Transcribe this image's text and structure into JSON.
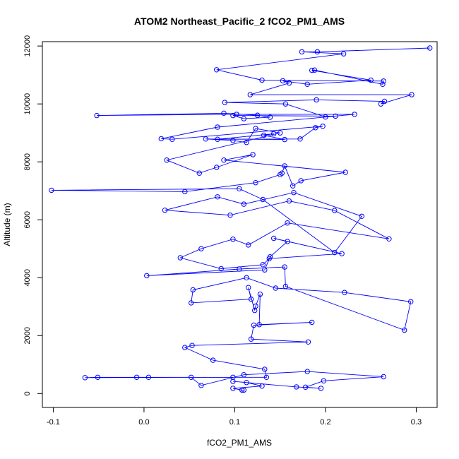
{
  "chart_data": {
    "type": "line",
    "title": "ATOM2 Northeast_Pacific_2 fCO2_PM1_AMS",
    "xlabel": "fCO2_PM1_AMS",
    "ylabel": "Altitude (m)",
    "xlim": [
      -0.112,
      0.323
    ],
    "ylim": [
      -480,
      12150
    ],
    "xticks": [
      -0.1,
      0.0,
      0.1,
      0.2,
      0.3
    ],
    "xtick_labels": [
      "-0.1",
      "0.0",
      "0.1",
      "0.2",
      "0.3"
    ],
    "yticks": [
      0,
      2000,
      4000,
      6000,
      8000,
      10000,
      12000
    ],
    "ytick_labels": [
      "0",
      "2000",
      "4000",
      "6000",
      "8000",
      "10000",
      "12000"
    ],
    "grid": false,
    "series": [
      {
        "color": "#0000ff",
        "marker": "open-circle",
        "x": [
          0.11,
          0.108,
          0.098,
          0.13,
          0.113,
          0.098,
          0.168,
          0.195,
          0.178,
          0.198,
          0.264,
          0.18,
          0.11,
          0.063,
          0.052,
          0.005,
          -0.008,
          -0.051,
          -0.065,
          0.098,
          0.135,
          0.133,
          0.076,
          0.045,
          0.053,
          0.181,
          0.118,
          0.121,
          0.185,
          0.127,
          0.128,
          0.123,
          0.122,
          0.115,
          0.118,
          0.052,
          0.054,
          0.113,
          0.145,
          0.221,
          0.294,
          0.287,
          0.156,
          0.155,
          0.105,
          0.003,
          0.133,
          0.139,
          0.158,
          0.143,
          0.218,
          0.138,
          0.131,
          0.085,
          0.04,
          0.063,
          0.098,
          0.115,
          0.158,
          0.27,
          0.21,
          0.16,
          0.095,
          0.023,
          0.081,
          0.11,
          0.165,
          0.24,
          0.21,
          0.131,
          0.105,
          -0.102,
          0.045,
          0.123,
          0.15,
          0.152,
          0.155,
          0.164,
          0.173,
          0.222,
          0.088,
          0.12,
          0.08,
          0.061,
          0.025,
          0.15,
          0.123,
          0.113,
          0.098,
          0.068,
          0.155,
          0.132,
          0.143,
          0.081,
          0.172,
          0.189,
          0.197,
          0.031,
          0.019,
          0.081,
          0.211,
          0.098,
          0.11,
          0.139,
          0.125,
          0.088,
          -0.052,
          0.102,
          0.232,
          0.2,
          0.156,
          0.089,
          0.19,
          0.265,
          0.261,
          0.295,
          0.117,
          0.16,
          0.153,
          0.18,
          0.25,
          0.185,
          0.188,
          0.263,
          0.264,
          0.13,
          0.08,
          0.22,
          0.174,
          0.191,
          0.315
        ]
      }
    ],
    "points_y": [
      120,
      120,
      180,
      260,
      380,
      420,
      230,
      180,
      220,
      440,
      580,
      760,
      650,
      280,
      560,
      560,
      560,
      560,
      550,
      560,
      560,
      840,
      1150,
      1590,
      1660,
      1780,
      1880,
      2360,
      2460,
      2380,
      3430,
      3020,
      2870,
      3660,
      3260,
      3130,
      3580,
      4000,
      3640,
      3490,
      3170,
      2190,
      3700,
      4370,
      4300,
      4070,
      4270,
      4720,
      5250,
      5360,
      4830,
      4660,
      4450,
      4310,
      4690,
      5000,
      5330,
      5130,
      5890,
      5340,
      6320,
      6650,
      6160,
      6330,
      6790,
      6540,
      6940,
      6120,
      4870,
      6700,
      7070,
      7020,
      6970,
      7280,
      7560,
      7610,
      7860,
      7170,
      7350,
      7640,
      8060,
      8250,
      7810,
      7610,
      8060,
      9000,
      9150,
      8670,
      8740,
      8790,
      8770,
      8920,
      8970,
      8780,
      8790,
      9180,
      9230,
      8780,
      8800,
      9200,
      9580,
      9600,
      9490,
      9540,
      9610,
      9680,
      9600,
      9640,
      9640,
      9550,
      10000,
      10050,
      10140,
      10090,
      10000,
      10320,
      10320,
      10720,
      10800,
      10680,
      10820,
      11160,
      11170,
      10680,
      10790,
      10820,
      11180,
      11730,
      11800,
      11800,
      11930
    ]
  }
}
